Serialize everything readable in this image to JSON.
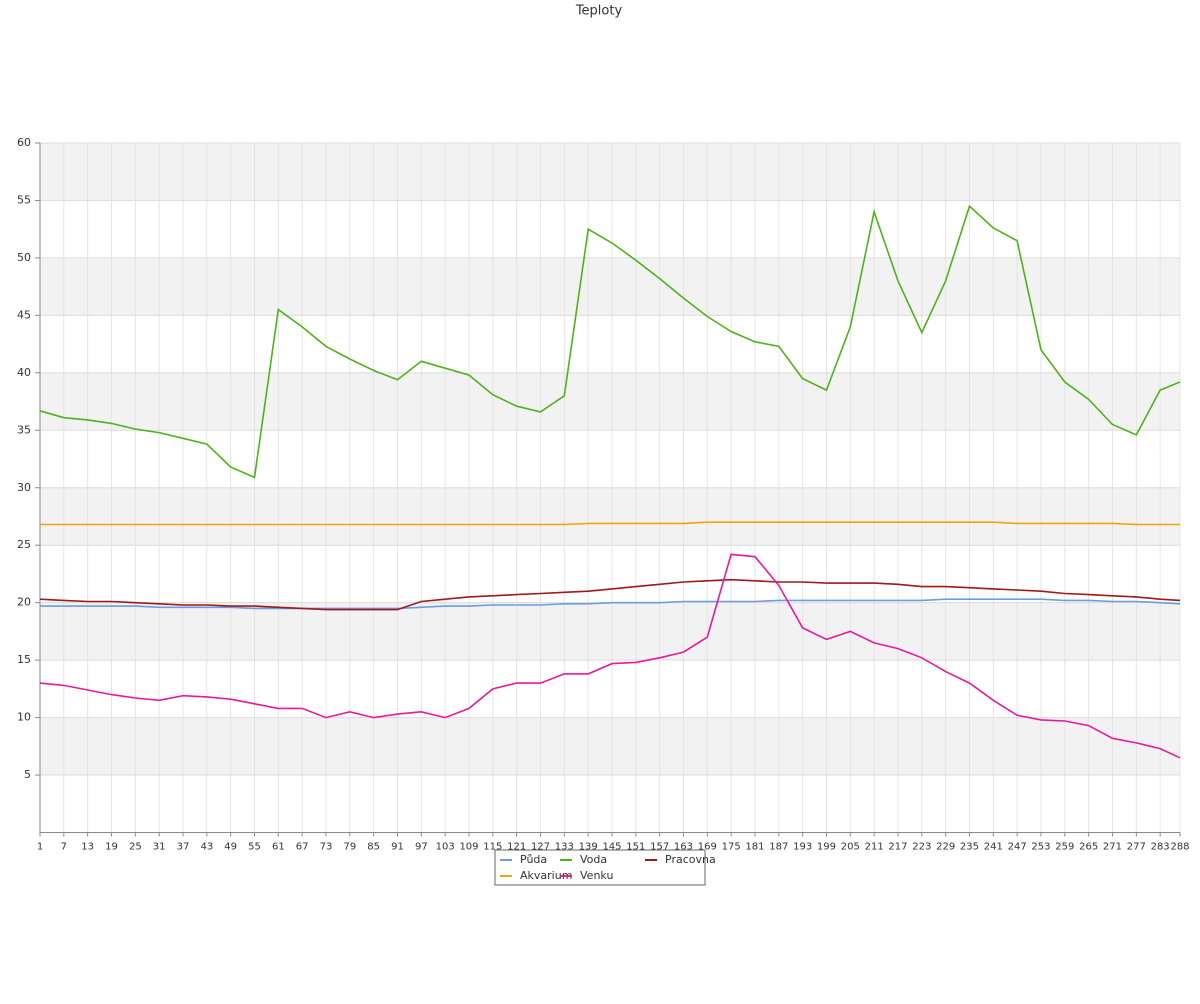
{
  "chart_data": {
    "type": "line",
    "title": "Teploty",
    "x": [
      1,
      7,
      13,
      19,
      25,
      31,
      37,
      43,
      49,
      55,
      61,
      67,
      73,
      79,
      85,
      91,
      97,
      103,
      109,
      115,
      121,
      127,
      133,
      139,
      145,
      151,
      157,
      163,
      169,
      175,
      181,
      187,
      193,
      199,
      205,
      211,
      217,
      223,
      229,
      235,
      241,
      247,
      253,
      259,
      265,
      271,
      277,
      283,
      288
    ],
    "xlim": [
      1,
      288
    ],
    "xticks": [
      1,
      7,
      13,
      19,
      25,
      31,
      37,
      43,
      49,
      55,
      61,
      67,
      73,
      79,
      85,
      91,
      97,
      103,
      109,
      115,
      121,
      127,
      133,
      139,
      145,
      151,
      157,
      163,
      169,
      175,
      181,
      187,
      193,
      199,
      205,
      211,
      217,
      223,
      229,
      235,
      241,
      247,
      253,
      259,
      265,
      271,
      277,
      283,
      288
    ],
    "ylim": [
      0,
      60
    ],
    "yticks": [
      5,
      10,
      15,
      20,
      25,
      30,
      35,
      40,
      45,
      50,
      55,
      60
    ],
    "grid": true,
    "series": [
      {
        "name": "Půda",
        "color": "#6b9de0",
        "values": [
          19.7,
          19.7,
          19.7,
          19.7,
          19.7,
          19.6,
          19.6,
          19.6,
          19.6,
          19.5,
          19.5,
          19.5,
          19.5,
          19.5,
          19.5,
          19.5,
          19.6,
          19.7,
          19.7,
          19.8,
          19.8,
          19.8,
          19.9,
          19.9,
          20.0,
          20.0,
          20.0,
          20.1,
          20.1,
          20.1,
          20.1,
          20.2,
          20.2,
          20.2,
          20.2,
          20.2,
          20.2,
          20.2,
          20.3,
          20.3,
          20.3,
          20.3,
          20.3,
          20.2,
          20.2,
          20.1,
          20.1,
          20.0,
          19.9
        ]
      },
      {
        "name": "Voda",
        "color": "#4db31a",
        "values": [
          36.7,
          36.1,
          35.9,
          35.6,
          35.1,
          34.8,
          34.3,
          33.8,
          31.8,
          30.9,
          45.5,
          44.0,
          42.3,
          41.2,
          40.2,
          39.4,
          41.0,
          40.4,
          39.8,
          38.1,
          37.1,
          36.6,
          38.0,
          52.5,
          51.3,
          49.8,
          48.2,
          46.5,
          44.9,
          43.6,
          42.7,
          42.3,
          39.5,
          38.5,
          44.0,
          54.0,
          48.0,
          43.5,
          48.0,
          54.5,
          52.6,
          51.5,
          42.0,
          39.2,
          37.7,
          35.5,
          34.6,
          38.5,
          39.2
        ]
      },
      {
        "name": "Pracovna",
        "color": "#a01818",
        "values": [
          20.3,
          20.2,
          20.1,
          20.1,
          20.0,
          19.9,
          19.8,
          19.8,
          19.7,
          19.7,
          19.6,
          19.5,
          19.4,
          19.4,
          19.4,
          19.4,
          20.1,
          20.3,
          20.5,
          20.6,
          20.7,
          20.8,
          20.9,
          21.0,
          21.2,
          21.4,
          21.6,
          21.8,
          21.9,
          22.0,
          21.9,
          21.8,
          21.8,
          21.7,
          21.7,
          21.7,
          21.6,
          21.4,
          21.4,
          21.3,
          21.2,
          21.1,
          21.0,
          20.8,
          20.7,
          20.6,
          20.5,
          20.3,
          20.2
        ]
      },
      {
        "name": "Akvarium",
        "color": "#f5a20a",
        "values": [
          26.8,
          26.8,
          26.8,
          26.8,
          26.8,
          26.8,
          26.8,
          26.8,
          26.8,
          26.8,
          26.8,
          26.8,
          26.8,
          26.8,
          26.8,
          26.8,
          26.8,
          26.8,
          26.8,
          26.8,
          26.8,
          26.8,
          26.8,
          26.9,
          26.9,
          26.9,
          26.9,
          26.9,
          27.0,
          27.0,
          27.0,
          27.0,
          27.0,
          27.0,
          27.0,
          27.0,
          27.0,
          27.0,
          27.0,
          27.0,
          27.0,
          26.9,
          26.9,
          26.9,
          26.9,
          26.9,
          26.8,
          26.8,
          26.8
        ]
      },
      {
        "name": "Venku",
        "color": "#e81a9a",
        "values": [
          13.0,
          12.8,
          12.4,
          12.0,
          11.7,
          11.5,
          11.9,
          11.8,
          11.6,
          11.2,
          10.8,
          10.8,
          10.0,
          10.5,
          10.0,
          10.3,
          10.5,
          10.0,
          10.8,
          12.5,
          13.0,
          13.0,
          13.8,
          13.8,
          14.7,
          14.8,
          15.2,
          15.7,
          17.0,
          24.2,
          24.0,
          21.5,
          17.8,
          16.8,
          17.5,
          16.5,
          16.0,
          15.2,
          14.0,
          13.0,
          11.5,
          10.2,
          9.8,
          9.7,
          9.3,
          8.2,
          7.8,
          7.3,
          6.5
        ]
      }
    ]
  }
}
